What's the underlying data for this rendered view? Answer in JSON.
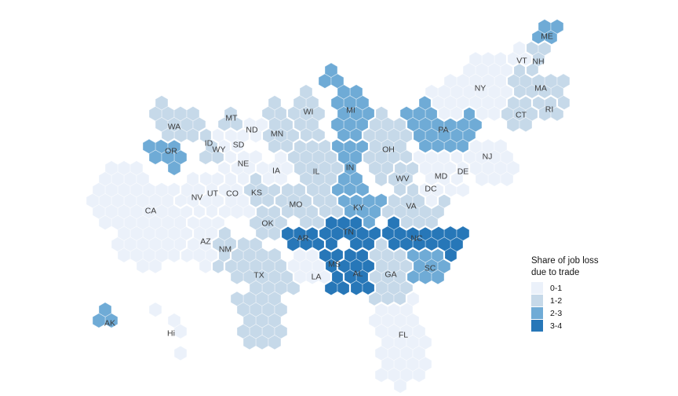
{
  "page": {
    "background": "#ffffff"
  },
  "legend": {
    "title_lines": [
      "Share of job loss",
      "due to trade"
    ],
    "items": [
      {
        "label": "0-1",
        "color": "#ebf1fa"
      },
      {
        "label": "1-2",
        "color": "#c6d9e9"
      },
      {
        "label": "2-3",
        "color": "#6fabd6"
      },
      {
        "label": "3-4",
        "color": "#2777b8"
      }
    ]
  },
  "chart_data": {
    "type": "heatmap",
    "subtype": "us-state-hex-cartogram",
    "title": "Share of job loss due to trade",
    "legend_position": "right",
    "bins": [
      "0-1",
      "1-2",
      "2-3",
      "3-4"
    ],
    "bin_colors": [
      "#ebf1fa",
      "#c6d9e9",
      "#6fabd6",
      "#2777b8"
    ],
    "states": {
      "AK": "2-3",
      "AL": "3-4",
      "AR": "3-4",
      "AZ": "0-1",
      "CA": "0-1",
      "CO": "0-1",
      "CT": "1-2",
      "DC": "0-1",
      "DE": "0-1",
      "FL": "0-1",
      "GA": "1-2",
      "HI": "0-1",
      "IA": "0-1",
      "ID": "1-2",
      "IL": "1-2",
      "IN": "2-3",
      "KS": "1-2",
      "KY": "2-3",
      "LA": "0-1",
      "MA": "1-2",
      "MD": "0-1",
      "ME": "2-3",
      "MI": "2-3",
      "MN": "1-2",
      "MO": "1-2",
      "MS": "3-4",
      "MT": "1-2",
      "NC": "3-4",
      "ND": "0-1",
      "NE": "0-1",
      "NH": "1-2",
      "NJ": "0-1",
      "NM": "1-2",
      "NV": "0-1",
      "NY": "0-1",
      "OH": "1-2",
      "OK": "1-2",
      "OR": "2-3",
      "PA": "2-3",
      "RI": "1-2",
      "SC": "2-3",
      "SD": "0-1",
      "TN": "3-4",
      "TX": "1-2",
      "UT": "0-1",
      "VA": "1-2",
      "VT": "0-1",
      "WA": "1-2",
      "WI": "1-2",
      "WV": "1-2",
      "WY": "0-1"
    }
  },
  "map": {
    "bin_colors": [
      "#ebf1fa",
      "#c6d9e9",
      "#6fabd6",
      "#2777b8"
    ],
    "label_color": "#3b3b3b",
    "states": [
      {
        "abbr": "AK",
        "bin": 2,
        "label": [
          140,
          411
        ],
        "seeds": [
          [
            141,
            407
          ]
        ],
        "cells": 3
      },
      {
        "abbr": "HI",
        "bin": 0,
        "label": [
          218,
          424
        ],
        "display": "Hi",
        "seeds": [
          [
            190,
            400
          ],
          [
            215,
            413
          ],
          [
            237,
            425
          ],
          [
            230,
            443
          ]
        ],
        "cells": 4
      },
      {
        "abbr": "WA",
        "bin": 1,
        "label": [
          222,
          161
        ],
        "seeds": [
          [
            212,
            152
          ],
          [
            238,
            164
          ]
        ],
        "cells": 12
      },
      {
        "abbr": "OR",
        "bin": 2,
        "label": [
          218,
          192
        ],
        "seeds": [
          [
            198,
            191
          ],
          [
            226,
            199
          ]
        ],
        "cells": 7
      },
      {
        "abbr": "CA",
        "bin": 0,
        "label": [
          192,
          268
        ],
        "seeds": [
          [
            158,
            249
          ],
          [
            196,
            270
          ],
          [
            232,
            296
          ],
          [
            184,
            300
          ]
        ],
        "cells": 55
      },
      {
        "abbr": "NV",
        "bin": 0,
        "label": [
          251,
          251
        ],
        "seeds": [
          [
            249,
            247
          ]
        ],
        "cells": 6
      },
      {
        "abbr": "ID",
        "bin": 1,
        "label": [
          266,
          182
        ],
        "seeds": [
          [
            261,
            172
          ],
          [
            271,
            191
          ]
        ],
        "cells": 4
      },
      {
        "abbr": "MT",
        "bin": 1,
        "label": [
          295,
          150
        ],
        "seeds": [
          [
            293,
            150
          ]
        ],
        "cells": 3
      },
      {
        "abbr": "WY",
        "bin": 0,
        "label": [
          279,
          190
        ],
        "seeds": [
          [
            278,
            189
          ]
        ],
        "cells": 3
      },
      {
        "abbr": "UT",
        "bin": 0,
        "label": [
          271,
          246
        ],
        "seeds": [
          [
            269,
            246
          ]
        ],
        "cells": 6
      },
      {
        "abbr": "CO",
        "bin": 0,
        "label": [
          296,
          246
        ],
        "seeds": [
          [
            297,
            245
          ]
        ],
        "cells": 9
      },
      {
        "abbr": "AZ",
        "bin": 0,
        "label": [
          262,
          307
        ],
        "seeds": [
          [
            261,
            306
          ]
        ],
        "cells": 11
      },
      {
        "abbr": "NM",
        "bin": 1,
        "label": [
          287,
          317
        ],
        "seeds": [
          [
            287,
            302
          ],
          [
            283,
            327
          ]
        ],
        "cells": 5
      },
      {
        "abbr": "ND",
        "bin": 0,
        "label": [
          321,
          165
        ],
        "seeds": [
          [
            319,
            163
          ]
        ],
        "cells": 3
      },
      {
        "abbr": "SD",
        "bin": 0,
        "label": [
          304,
          184
        ],
        "seeds": [
          [
            302,
            184
          ]
        ],
        "cells": 3
      },
      {
        "abbr": "NE",
        "bin": 0,
        "label": [
          310,
          208
        ],
        "seeds": [
          [
            311,
            207
          ]
        ],
        "cells": 5
      },
      {
        "abbr": "KS",
        "bin": 1,
        "label": [
          327,
          245
        ],
        "seeds": [
          [
            327,
            244
          ]
        ],
        "cells": 6
      },
      {
        "abbr": "OK",
        "bin": 1,
        "label": [
          341,
          284
        ],
        "seeds": [
          [
            339,
            281
          ]
        ],
        "cells": 7
      },
      {
        "abbr": "TX",
        "bin": 1,
        "label": [
          330,
          350
        ],
        "seeds": [
          [
            318,
            331
          ],
          [
            352,
            352
          ],
          [
            331,
            389
          ],
          [
            335,
            412
          ]
        ],
        "cells": 38
      },
      {
        "abbr": "MN",
        "bin": 1,
        "label": [
          353,
          170
        ],
        "seeds": [
          [
            352,
            148
          ],
          [
            357,
            178
          ]
        ],
        "cells": 10
      },
      {
        "abbr": "IA",
        "bin": 0,
        "label": [
          352,
          217
        ],
        "seeds": [
          [
            352,
            216
          ]
        ],
        "cells": 6
      },
      {
        "abbr": "MO",
        "bin": 1,
        "label": [
          377,
          260
        ],
        "seeds": [
          [
            371,
            256
          ],
          [
            392,
            268
          ]
        ],
        "cells": 10
      },
      {
        "abbr": "AR",
        "bin": 3,
        "label": [
          386,
          303
        ],
        "seeds": [
          [
            383,
            299
          ],
          [
            401,
            305
          ]
        ],
        "cells": 6
      },
      {
        "abbr": "LA",
        "bin": 0,
        "label": [
          403,
          352
        ],
        "seeds": [
          [
            401,
            350
          ],
          [
            389,
            339
          ]
        ],
        "cells": 8
      },
      {
        "abbr": "WI",
        "bin": 1,
        "label": [
          393,
          142
        ],
        "seeds": [
          [
            390,
            135
          ],
          [
            396,
            155
          ]
        ],
        "cells": 10
      },
      {
        "abbr": "IL",
        "bin": 1,
        "label": [
          403,
          218
        ],
        "seeds": [
          [
            404,
            191
          ],
          [
            407,
            229
          ],
          [
            401,
            262
          ]
        ],
        "cells": 20
      },
      {
        "abbr": "MS",
        "bin": 3,
        "label": [
          426,
          336
        ],
        "seeds": [
          [
            424,
            329
          ],
          [
            428,
            354
          ]
        ],
        "cells": 6
      },
      {
        "abbr": "MI",
        "bin": 2,
        "label": [
          447,
          140
        ],
        "seeds": [
          [
            446,
            131
          ],
          [
            452,
            157
          ]
        ],
        "cells": 13
      },
      {
        "abbr": "MI",
        "bin": 2,
        "part": true,
        "label": null,
        "seeds": [
          [
            416,
            101
          ]
        ],
        "cells": 3
      },
      {
        "abbr": "IN",
        "bin": 2,
        "label": [
          446,
          213
        ],
        "seeds": [
          [
            444,
            196
          ],
          [
            448,
            231
          ]
        ],
        "cells": 11
      },
      {
        "abbr": "KY",
        "bin": 2,
        "label": [
          457,
          264
        ],
        "seeds": [
          [
            446,
            260
          ],
          [
            473,
            266
          ]
        ],
        "cells": 8
      },
      {
        "abbr": "TN",
        "bin": 3,
        "label": [
          444,
          295
        ],
        "seeds": [
          [
            423,
            293
          ],
          [
            461,
            297
          ]
        ],
        "cells": 11
      },
      {
        "abbr": "AL",
        "bin": 3,
        "label": [
          456,
          348
        ],
        "seeds": [
          [
            455,
            331
          ],
          [
            459,
            361
          ]
        ],
        "cells": 9
      },
      {
        "abbr": "OH",
        "bin": 1,
        "label": [
          495,
          190
        ],
        "seeds": [
          [
            491,
            177
          ],
          [
            499,
            209
          ]
        ],
        "cells": 18
      },
      {
        "abbr": "GA",
        "bin": 1,
        "label": [
          498,
          349
        ],
        "seeds": [
          [
            494,
            337
          ],
          [
            501,
            365
          ]
        ],
        "cells": 16
      },
      {
        "abbr": "FL",
        "bin": 0,
        "label": [
          514,
          426
        ],
        "seeds": [
          [
            503,
            397
          ],
          [
            517,
            430
          ],
          [
            511,
            462
          ]
        ],
        "cells": 29
      },
      {
        "abbr": "SC",
        "bin": 2,
        "label": [
          548,
          341
        ],
        "seeds": [
          [
            546,
            339
          ]
        ],
        "cells": 9
      },
      {
        "abbr": "NC",
        "bin": 3,
        "label": [
          531,
          303
        ],
        "seeds": [
          [
            507,
            300
          ],
          [
            545,
            304
          ],
          [
            575,
            306
          ]
        ],
        "cells": 15
      },
      {
        "abbr": "VA",
        "bin": 1,
        "label": [
          524,
          262
        ],
        "seeds": [
          [
            513,
            259
          ],
          [
            544,
            267
          ]
        ],
        "cells": 13
      },
      {
        "abbr": "WV",
        "bin": 1,
        "label": [
          513,
          227
        ],
        "seeds": [
          [
            511,
            227
          ]
        ],
        "cells": 5
      },
      {
        "abbr": "MD",
        "bin": 0,
        "label": [
          562,
          224
        ],
        "seeds": [
          [
            555,
            212
          ],
          [
            572,
            224
          ]
        ],
        "cells": 10
      },
      {
        "abbr": "DC",
        "bin": 0,
        "label": [
          549,
          240
        ],
        "seeds": [
          [
            546,
            242
          ]
        ],
        "cells": 3
      },
      {
        "abbr": "DE",
        "bin": 0,
        "label": [
          590,
          218
        ],
        "seeds": [
          [
            589,
            214
          ]
        ],
        "cells": 3
      },
      {
        "abbr": "PA",
        "bin": 2,
        "label": [
          565,
          165
        ],
        "seeds": [
          [
            549,
            159
          ],
          [
            578,
            169
          ]
        ],
        "cells": 20
      },
      {
        "abbr": "NJ",
        "bin": 0,
        "label": [
          621,
          199
        ],
        "seeds": [
          [
            619,
            197
          ],
          [
            629,
            214
          ]
        ],
        "cells": 14
      },
      {
        "abbr": "NY",
        "bin": 0,
        "label": [
          612,
          112
        ],
        "seeds": [
          [
            573,
            140
          ],
          [
            602,
            122
          ],
          [
            632,
            100
          ]
        ],
        "cells": 29
      },
      {
        "abbr": "VT",
        "bin": 0,
        "label": [
          665,
          77
        ],
        "seeds": [
          [
            661,
            73
          ]
        ],
        "cells": 3
      },
      {
        "abbr": "NH",
        "bin": 1,
        "label": [
          686,
          78
        ],
        "seeds": [
          [
            681,
            71
          ]
        ],
        "cells": 4
      },
      {
        "abbr": "ME",
        "bin": 2,
        "label": [
          697,
          46
        ],
        "seeds": [
          [
            696,
            42
          ]
        ],
        "cells": 4
      },
      {
        "abbr": "MA",
        "bin": 1,
        "label": [
          689,
          112
        ],
        "seeds": [
          [
            672,
            108
          ],
          [
            702,
            114
          ]
        ],
        "cells": 11
      },
      {
        "abbr": "CT",
        "bin": 1,
        "label": [
          664,
          146
        ],
        "seeds": [
          [
            660,
            144
          ]
        ],
        "cells": 7
      },
      {
        "abbr": "RI",
        "bin": 1,
        "label": [
          700,
          139
        ],
        "seeds": [
          [
            699,
            136
          ]
        ],
        "cells": 4
      }
    ]
  }
}
